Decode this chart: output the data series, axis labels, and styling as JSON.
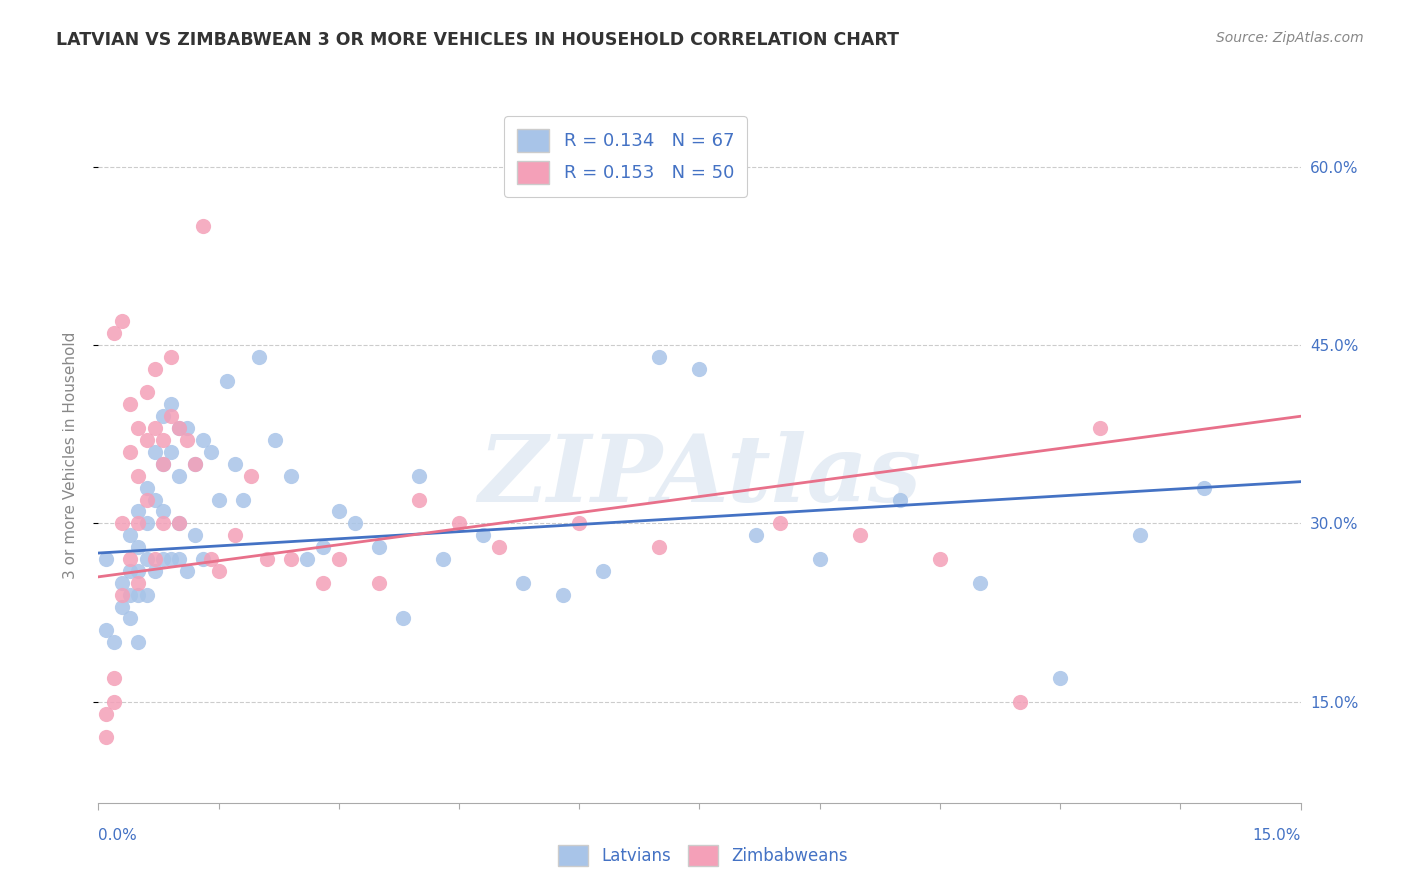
{
  "title": "LATVIAN VS ZIMBABWEAN 3 OR MORE VEHICLES IN HOUSEHOLD CORRELATION CHART",
  "source": "Source: ZipAtlas.com",
  "ylabel": "3 or more Vehicles in Household",
  "watermark": "ZIPAtlas",
  "xlim": [
    0.0,
    0.15
  ],
  "ylim": [
    0.065,
    0.65
  ],
  "ytick_vals": [
    0.15,
    0.3,
    0.45,
    0.6
  ],
  "ytick_labels": [
    "15.0%",
    "30.0%",
    "45.0%",
    "60.0%"
  ],
  "latvian_color": "#a8c4e8",
  "zimbabwean_color": "#f4a0b8",
  "latvian_line_color": "#4472C4",
  "zimbabwean_line_color": "#e8708a",
  "axis_label_color": "#4472C4",
  "title_color": "#333333",
  "source_color": "#888888",
  "background_color": "#ffffff",
  "grid_color": "#cccccc",
  "watermark_color": "#c8d8ea",
  "latvian_R": 0.134,
  "latvian_N": 67,
  "zimbabwean_R": 0.153,
  "zimbabwean_N": 50,
  "latvian_x": [
    0.001,
    0.001,
    0.002,
    0.003,
    0.003,
    0.004,
    0.004,
    0.004,
    0.004,
    0.005,
    0.005,
    0.005,
    0.005,
    0.005,
    0.006,
    0.006,
    0.006,
    0.006,
    0.007,
    0.007,
    0.007,
    0.008,
    0.008,
    0.008,
    0.008,
    0.009,
    0.009,
    0.009,
    0.01,
    0.01,
    0.01,
    0.01,
    0.011,
    0.011,
    0.012,
    0.012,
    0.013,
    0.013,
    0.014,
    0.015,
    0.016,
    0.017,
    0.018,
    0.02,
    0.022,
    0.024,
    0.026,
    0.028,
    0.03,
    0.032,
    0.035,
    0.038,
    0.04,
    0.043,
    0.048,
    0.053,
    0.058,
    0.063,
    0.07,
    0.075,
    0.082,
    0.09,
    0.1,
    0.11,
    0.12,
    0.13,
    0.138
  ],
  "latvian_y": [
    0.27,
    0.21,
    0.2,
    0.25,
    0.23,
    0.29,
    0.26,
    0.24,
    0.22,
    0.31,
    0.28,
    0.26,
    0.24,
    0.2,
    0.33,
    0.3,
    0.27,
    0.24,
    0.36,
    0.32,
    0.26,
    0.39,
    0.35,
    0.31,
    0.27,
    0.4,
    0.36,
    0.27,
    0.38,
    0.34,
    0.3,
    0.27,
    0.38,
    0.26,
    0.35,
    0.29,
    0.37,
    0.27,
    0.36,
    0.32,
    0.42,
    0.35,
    0.32,
    0.44,
    0.37,
    0.34,
    0.27,
    0.28,
    0.31,
    0.3,
    0.28,
    0.22,
    0.34,
    0.27,
    0.29,
    0.25,
    0.24,
    0.26,
    0.44,
    0.43,
    0.29,
    0.27,
    0.32,
    0.25,
    0.17,
    0.29,
    0.33
  ],
  "zimbabwean_x": [
    0.001,
    0.001,
    0.002,
    0.002,
    0.003,
    0.003,
    0.003,
    0.004,
    0.004,
    0.004,
    0.005,
    0.005,
    0.005,
    0.005,
    0.006,
    0.006,
    0.006,
    0.007,
    0.007,
    0.007,
    0.008,
    0.008,
    0.009,
    0.009,
    0.01,
    0.01,
    0.011,
    0.012,
    0.013,
    0.014,
    0.015,
    0.017,
    0.019,
    0.021,
    0.024,
    0.028,
    0.03,
    0.035,
    0.04,
    0.045,
    0.05,
    0.06,
    0.07,
    0.085,
    0.095,
    0.105,
    0.115,
    0.125,
    0.002,
    0.008
  ],
  "zimbabwean_y": [
    0.14,
    0.12,
    0.17,
    0.15,
    0.47,
    0.3,
    0.24,
    0.4,
    0.36,
    0.27,
    0.38,
    0.34,
    0.3,
    0.25,
    0.41,
    0.37,
    0.32,
    0.43,
    0.38,
    0.27,
    0.37,
    0.3,
    0.44,
    0.39,
    0.38,
    0.3,
    0.37,
    0.35,
    0.55,
    0.27,
    0.26,
    0.29,
    0.34,
    0.27,
    0.27,
    0.25,
    0.27,
    0.25,
    0.32,
    0.3,
    0.28,
    0.3,
    0.28,
    0.3,
    0.29,
    0.27,
    0.15,
    0.38,
    0.46,
    0.35
  ]
}
